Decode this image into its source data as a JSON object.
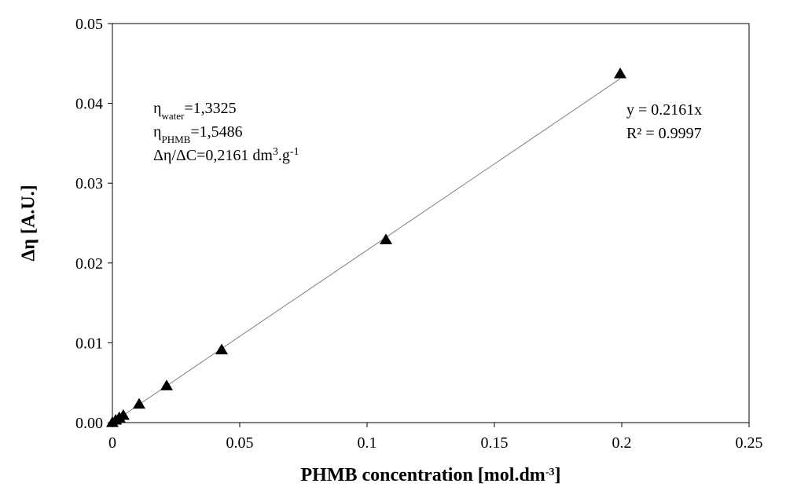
{
  "chart_data": {
    "type": "scatter",
    "x_label": [
      {
        "text": "PHMB concentration [mol.dm"
      },
      {
        "text": "-3",
        "shift": "sup"
      },
      {
        "text": "]"
      }
    ],
    "y_label": "Δη [A.U.]",
    "x": [
      0,
      0.0013,
      0.0027,
      0.0043,
      0.0105,
      0.0213,
      0.0429,
      0.1074,
      0.1994
    ],
    "values": [
      0,
      0.0003,
      0.0006,
      0.0009,
      0.0023,
      0.0046,
      0.0091,
      0.0229,
      0.0437
    ],
    "color": "#000000",
    "xlim": [
      0,
      0.25
    ],
    "xticks": [
      0,
      0.05,
      0.1,
      0.15,
      0.2,
      0.25
    ],
    "ylim": [
      0,
      0.05
    ],
    "yticks": [
      {
        "value": 0,
        "label": "0.00"
      },
      {
        "value": 0.01,
        "label": "0.01"
      },
      {
        "value": 0.02,
        "label": "0.02"
      },
      {
        "value": 0.03,
        "label": "0.03"
      },
      {
        "value": 0.04,
        "label": "0.04"
      },
      {
        "value": 0.05,
        "label": "0.05"
      }
    ],
    "grid": false,
    "trendline": {
      "slope": 0.2161,
      "color": "#808080",
      "equation": "y = 0.2161x",
      "r_squared": "R² = 0.9997"
    },
    "annotations": [
      [
        {
          "text": "η"
        },
        {
          "text": "water",
          "shift": "sub"
        },
        {
          "text": "=1,3325"
        }
      ],
      [
        {
          "text": "η"
        },
        {
          "text": "PHMB",
          "shift": "sub"
        },
        {
          "text": "=1,5486"
        }
      ],
      [
        {
          "text": "Δη/ΔC=0,2161 dm"
        },
        {
          "text": "3",
          "shift": "sup"
        },
        {
          "text": ".g"
        },
        {
          "text": "-1",
          "shift": "sup"
        }
      ]
    ]
  }
}
